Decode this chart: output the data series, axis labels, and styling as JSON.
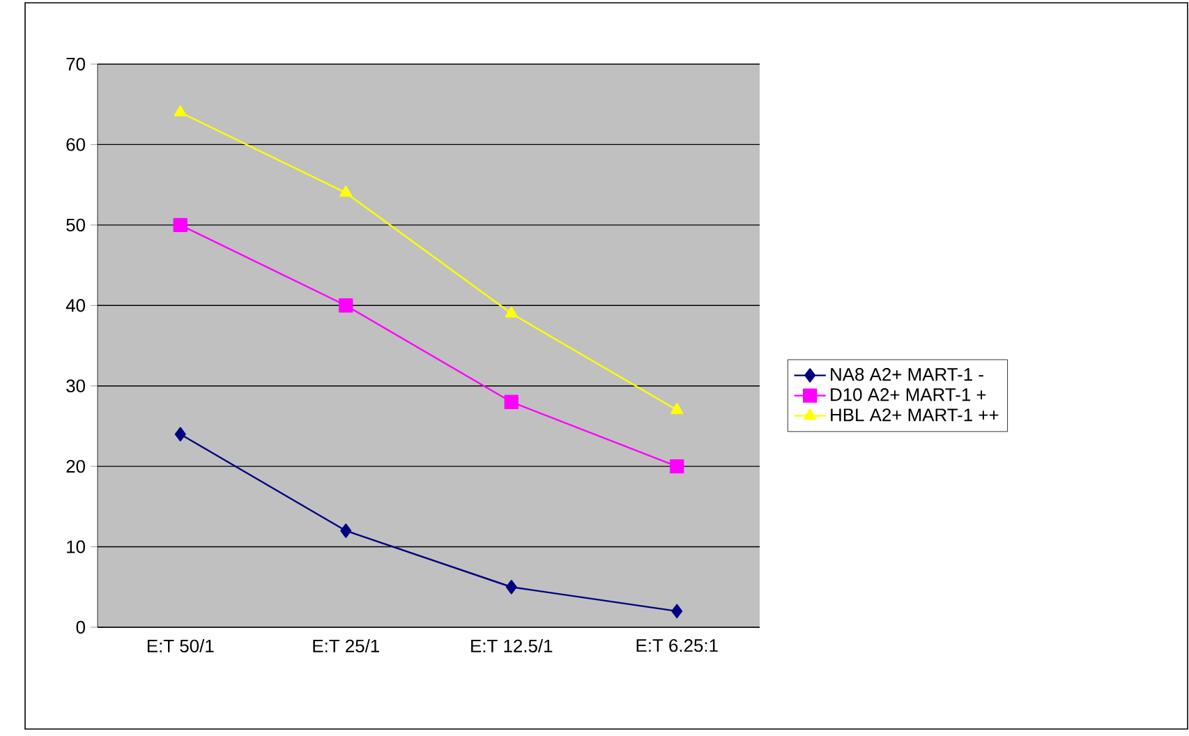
{
  "chart_data": {
    "type": "line",
    "categories": [
      "E:T 50/1",
      "E:T 25/1",
      "E:T 12.5/1",
      "E:T 6.25:1"
    ],
    "series": [
      {
        "name": "NA8 A2+ MART-1 -",
        "color": "#000080",
        "marker": "diamond",
        "values": [
          24,
          12,
          5,
          2
        ]
      },
      {
        "name": "D10 A2+ MART-1 +",
        "color": "#ff00ff",
        "marker": "square",
        "values": [
          50,
          40,
          28,
          20
        ]
      },
      {
        "name": "HBL A2+ MART-1 ++",
        "color": "#ffff00",
        "marker": "triangle",
        "values": [
          64,
          54,
          39,
          27
        ]
      }
    ],
    "ylim": [
      0,
      70
    ],
    "yticks": [
      0,
      10,
      20,
      30,
      40,
      50,
      60,
      70
    ],
    "grid": "y",
    "legend": "right"
  }
}
